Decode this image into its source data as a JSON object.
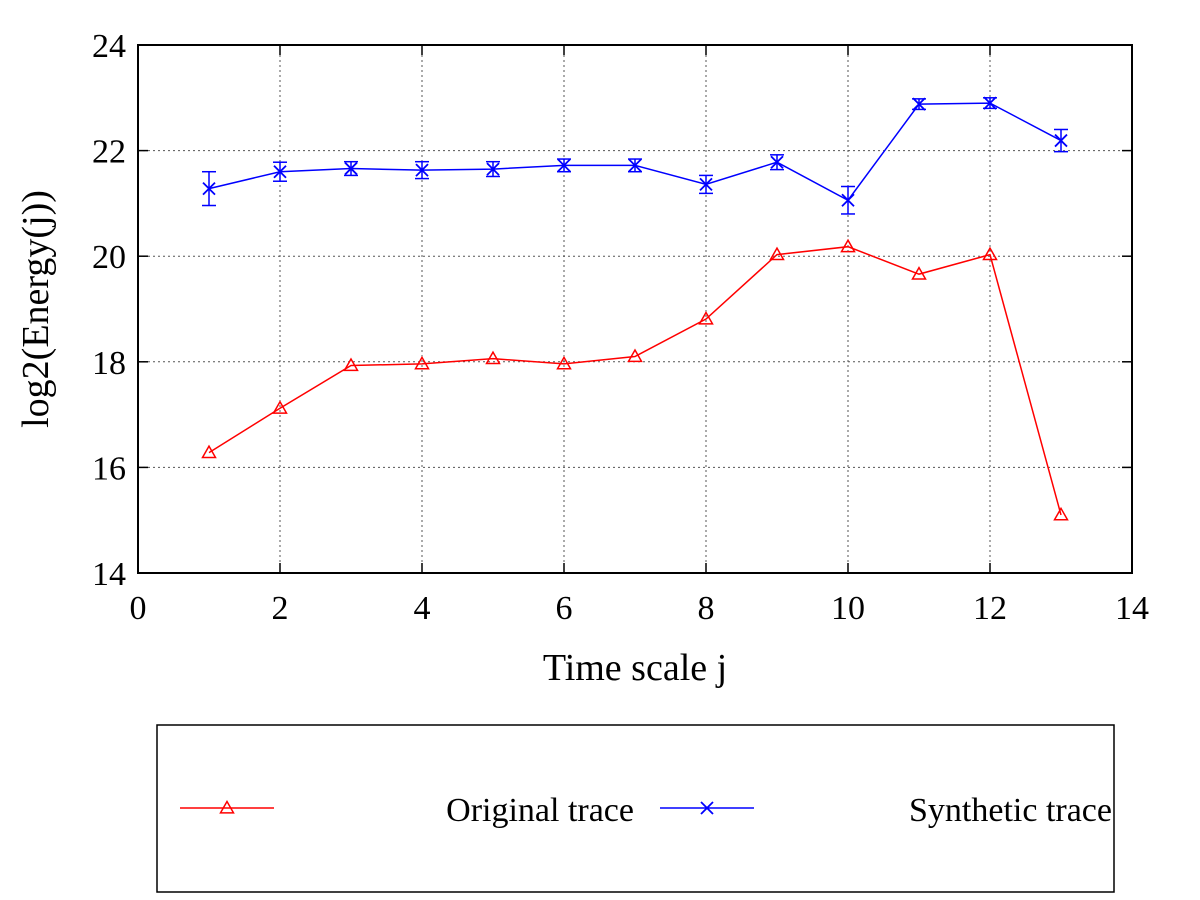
{
  "chart_data": {
    "type": "line",
    "xlabel": "Time scale j",
    "ylabel": "log2(Energy(j))",
    "xlim": [
      0,
      14
    ],
    "ylim": [
      14,
      24
    ],
    "x_ticks": [
      "0",
      "2",
      "4",
      "6",
      "8",
      "10",
      "12",
      "14"
    ],
    "y_ticks": [
      "14",
      "16",
      "18",
      "20",
      "22",
      "24"
    ],
    "grid": true,
    "legend_position": "bottom",
    "series": [
      {
        "name": "Original trace",
        "color": "#ff0000",
        "marker": "triangle",
        "x": [
          1,
          2,
          3,
          4,
          5,
          6,
          7,
          8,
          9,
          10,
          11,
          12,
          13
        ],
        "y": [
          16.28,
          17.12,
          17.93,
          17.96,
          18.06,
          17.96,
          18.1,
          18.81,
          20.03,
          20.18,
          19.66,
          20.03,
          15.1
        ]
      },
      {
        "name": "Synthetic trace",
        "color": "#0000ff",
        "marker": "x",
        "x": [
          1,
          2,
          3,
          4,
          5,
          6,
          7,
          8,
          9,
          10,
          11,
          12,
          13
        ],
        "y": [
          21.28,
          21.6,
          21.66,
          21.63,
          21.65,
          21.72,
          21.72,
          21.36,
          21.78,
          21.06,
          22.88,
          22.9,
          22.19
        ],
        "err": [
          0.32,
          0.18,
          0.13,
          0.16,
          0.14,
          0.12,
          0.12,
          0.17,
          0.14,
          0.26,
          0.1,
          0.1,
          0.21
        ]
      }
    ]
  }
}
